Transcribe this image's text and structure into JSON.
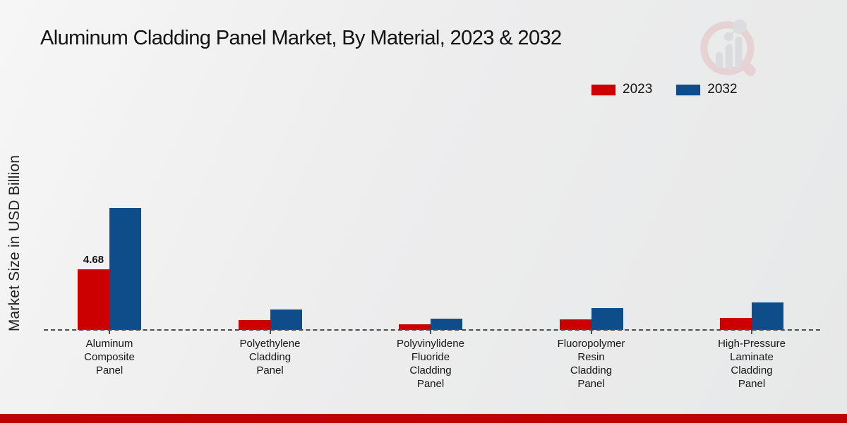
{
  "page": {
    "title": "Aluminum Cladding Panel Market, By Material, 2023 & 2032",
    "footer_color": "#bd0202"
  },
  "icons": {
    "watermark": "bar-chart-magnifier-logo"
  },
  "legend": {
    "items": [
      {
        "label": "2023",
        "color": "#cc0000"
      },
      {
        "label": "2032",
        "color": "#0e4c8a"
      }
    ]
  },
  "chart_data": {
    "type": "bar",
    "title": "Aluminum Cladding Panel Market, By Material, 2023 & 2032",
    "xlabel": "",
    "ylabel": "Market Size in USD Billion",
    "grid": false,
    "legend_position": "top-right",
    "baseline_style": "dashed",
    "ylim": [
      0,
      10
    ],
    "categories": [
      "Aluminum Composite Panel",
      "Polyethylene Cladding Panel",
      "Polyvinylidene Fluoride Cladding Panel",
      "Fluoropolymer Resin Cladding Panel",
      "High-Pressure Laminate Cladding Panel"
    ],
    "categories_wrapped": [
      "Aluminum\nComposite\nPanel",
      "Polyethylene\nCladding\nPanel",
      "Polyvinylidene\nFluoride\nCladding\nPanel",
      "Fluoropolymer\nResin\nCladding\nPanel",
      "High-Pressure\nLaminate\nCladding\nPanel"
    ],
    "series": [
      {
        "name": "2023",
        "color": "#cc0000",
        "values": [
          4.68,
          0.78,
          0.45,
          0.82,
          0.94
        ]
      },
      {
        "name": "2032",
        "color": "#0e4c8a",
        "values": [
          9.41,
          1.57,
          0.87,
          1.69,
          2.12
        ]
      }
    ],
    "annotations": [
      {
        "series": "2023",
        "category": "Aluminum Composite Panel",
        "text": "4.68"
      }
    ]
  }
}
